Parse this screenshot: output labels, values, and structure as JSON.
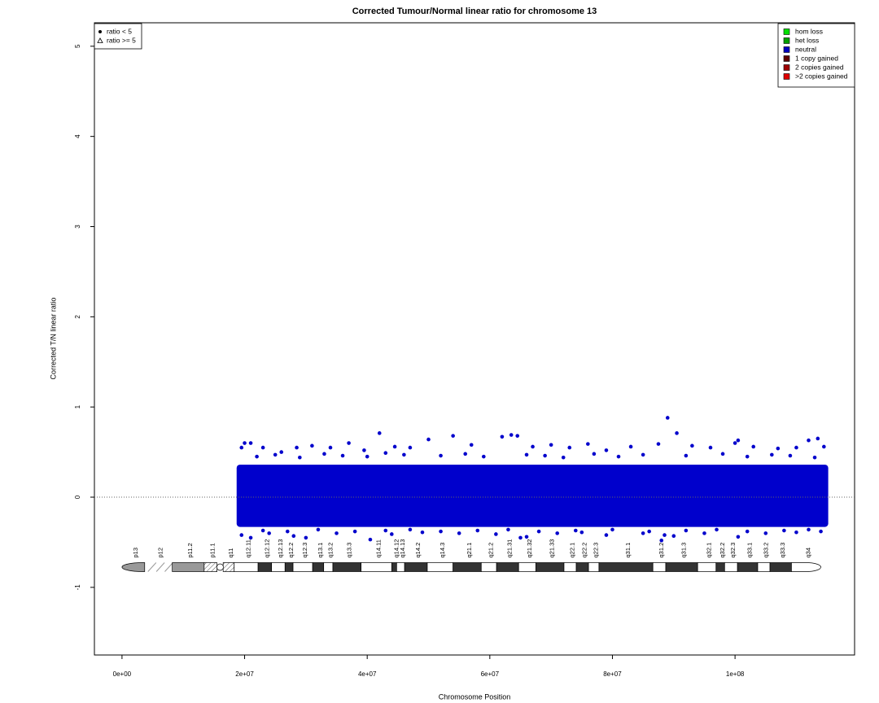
{
  "chart_data": {
    "type": "scatter",
    "title": "Corrected Tumour/Normal linear ratio for chromosome  13",
    "x_label": "Chromosome Position",
    "y_label": "Corrected T/N linear ratio",
    "xlim": [
      -4500000,
      119500000
    ],
    "ylim": [
      -1.75,
      5.26
    ],
    "xticks": [
      {
        "value": 0,
        "label": "0e+00"
      },
      {
        "value": 20000000,
        "label": "2e+07"
      },
      {
        "value": 40000000,
        "label": "4e+07"
      },
      {
        "value": 60000000,
        "label": "6e+07"
      },
      {
        "value": 80000000,
        "label": "8e+07"
      },
      {
        "value": 100000000,
        "label": "1e+08"
      }
    ],
    "yticks": [
      -1,
      0,
      1,
      2,
      3,
      4,
      5
    ],
    "hline": 0,
    "color": "#0000cc",
    "cloud": {
      "xlim": [
        18700000,
        115200000
      ],
      "ylim": [
        -0.33,
        0.36
      ]
    },
    "x": [
      20000000.0,
      21000000.0,
      19500000.0,
      23000000.0,
      26000000.0,
      28500000.0,
      31000000.0,
      34000000.0,
      37000000.0,
      39500000.0,
      42000000.0,
      44500000.0,
      47000000.0,
      50000000.0,
      54000000.0,
      57000000.0,
      62000000.0,
      63500000.0,
      64500000.0,
      67000000.0,
      70000000.0,
      73000000.0,
      76000000.0,
      79000000.0,
      83000000.0,
      87500000.0,
      89000000.0,
      90500000.0,
      93000000.0,
      96000000.0,
      100000000.0,
      100500000.0,
      103000000.0,
      107000000.0,
      110000000.0,
      112000000.0,
      113500000.0,
      114500000.0,
      19500000.0,
      21000000.0,
      24000000.0,
      28000000.0,
      30000000.0,
      35000000.0,
      40500000.0,
      44000000.0,
      49000000.0,
      55000000.0,
      61000000.0,
      65000000.0,
      66000000.0,
      71000000.0,
      75000000.0,
      79000000.0,
      85000000.0,
      88000000.0,
      88500000.0,
      90000000.0,
      95000000.0,
      100500000.0,
      105000000.0,
      110000000.0,
      114000000.0,
      22000000.0,
      25000000.0,
      29000000.0,
      33000000.0,
      36000000.0,
      40000000.0,
      43000000.0,
      46000000.0,
      52000000.0,
      56000000.0,
      59000000.0,
      66000000.0,
      69000000.0,
      72000000.0,
      77000000.0,
      81000000.0,
      85000000.0,
      92000000.0,
      98000000.0,
      102000000.0,
      106000000.0,
      109000000.0,
      113000000.0,
      23000000.0,
      27000000.0,
      32000000.0,
      38000000.0,
      43000000.0,
      47000000.0,
      52000000.0,
      58000000.0,
      63000000.0,
      68000000.0,
      74000000.0,
      80000000.0,
      86000000.0,
      92000000.0,
      97000000.0,
      102000000.0,
      108000000.0,
      112000000.0
    ],
    "values": [
      0.6,
      0.6,
      0.55,
      0.55,
      0.5,
      0.55,
      0.57,
      0.55,
      0.6,
      0.52,
      0.71,
      0.56,
      0.55,
      0.64,
      0.68,
      0.58,
      0.67,
      0.69,
      0.68,
      0.56,
      0.58,
      0.55,
      0.59,
      0.52,
      0.56,
      0.59,
      0.88,
      0.71,
      0.57,
      0.55,
      0.6,
      0.63,
      0.56,
      0.54,
      0.55,
      0.63,
      0.65,
      0.56,
      -0.42,
      -0.45,
      -0.4,
      -0.43,
      -0.45,
      -0.4,
      -0.47,
      -0.41,
      -0.39,
      -0.4,
      -0.41,
      -0.45,
      -0.44,
      -0.4,
      -0.39,
      -0.42,
      -0.4,
      -0.48,
      -0.42,
      -0.43,
      -0.4,
      -0.44,
      -0.4,
      -0.39,
      -0.38,
      0.45,
      0.47,
      0.44,
      0.48,
      0.46,
      0.45,
      0.49,
      0.47,
      0.46,
      0.48,
      0.45,
      0.47,
      0.46,
      0.44,
      0.48,
      0.45,
      0.47,
      0.46,
      0.48,
      0.45,
      0.47,
      0.46,
      0.44,
      -0.37,
      -0.38,
      -0.36,
      -0.38,
      -0.37,
      -0.36,
      -0.38,
      -0.37,
      -0.36,
      -0.38,
      -0.37,
      -0.36,
      -0.38,
      -0.37,
      -0.36,
      -0.38,
      -0.37,
      -0.36
    ],
    "shape_legend": [
      {
        "label": "ratio < 5",
        "symbol": "dot"
      },
      {
        "label": "ratio >= 5",
        "symbol": "triangle"
      }
    ],
    "color_legend": [
      {
        "label": "hom loss",
        "color": "#00e000"
      },
      {
        "label": "het loss",
        "color": "#00a000"
      },
      {
        "label": "neutral",
        "color": "#0000c0"
      },
      {
        "label": "1 copy gained",
        "color": "#600000"
      },
      {
        "label": "2 copies gained",
        "color": "#a00000"
      },
      {
        "label": ">2 copies gained",
        "color": "#e00000"
      }
    ],
    "ideogram": [
      {
        "label": "p13",
        "start": 0,
        "end": 3700000,
        "stain": "gvar"
      },
      {
        "label": "p12",
        "start": 3700000,
        "end": 8200000,
        "stain": "stalk"
      },
      {
        "label": "p11.2",
        "start": 8200000,
        "end": 13400000,
        "stain": "gvar"
      },
      {
        "label": "p11.1",
        "start": 13400000,
        "end": 15500000,
        "stain": "acen"
      },
      {
        "label": "q11",
        "start": 16500000,
        "end": 18300000,
        "stain": "acen"
      },
      {
        "label": "q12.11",
        "start": 18300000,
        "end": 22200000,
        "stain": "gneg"
      },
      {
        "label": "q12.12",
        "start": 22200000,
        "end": 24400000,
        "stain": "gpos"
      },
      {
        "label": "q12.13",
        "start": 24400000,
        "end": 26600000,
        "stain": "gneg"
      },
      {
        "label": "q12.2",
        "start": 26600000,
        "end": 27900000,
        "stain": "gpos"
      },
      {
        "label": "q12.3",
        "start": 27900000,
        "end": 31100000,
        "stain": "gneg"
      },
      {
        "label": "q13.1",
        "start": 31100000,
        "end": 32900000,
        "stain": "gpos"
      },
      {
        "label": "q13.2",
        "start": 32900000,
        "end": 34400000,
        "stain": "gneg"
      },
      {
        "label": "q13.3",
        "start": 34400000,
        "end": 39000000,
        "stain": "gpos"
      },
      {
        "label": "q14.11",
        "start": 39000000,
        "end": 44000000,
        "stain": "gneg"
      },
      {
        "label": "q14.12",
        "start": 44000000,
        "end": 44800000,
        "stain": "gpos"
      },
      {
        "label": "q14.13",
        "start": 44800000,
        "end": 46100000,
        "stain": "gneg"
      },
      {
        "label": "q14.2",
        "start": 46100000,
        "end": 49800000,
        "stain": "gpos"
      },
      {
        "label": "q14.3",
        "start": 49800000,
        "end": 54000000,
        "stain": "gneg"
      },
      {
        "label": "q21.1",
        "start": 54000000,
        "end": 58600000,
        "stain": "gpos"
      },
      {
        "label": "q21.2",
        "start": 58600000,
        "end": 61100000,
        "stain": "gneg"
      },
      {
        "label": "q21.31",
        "start": 61100000,
        "end": 64700000,
        "stain": "gpos"
      },
      {
        "label": "q21.32",
        "start": 64700000,
        "end": 67500000,
        "stain": "gneg"
      },
      {
        "label": "q21.33",
        "start": 67500000,
        "end": 72100000,
        "stain": "gpos"
      },
      {
        "label": "q22.1",
        "start": 72100000,
        "end": 74100000,
        "stain": "gneg"
      },
      {
        "label": "q22.2",
        "start": 74100000,
        "end": 76100000,
        "stain": "gpos"
      },
      {
        "label": "q22.3",
        "start": 76100000,
        "end": 77800000,
        "stain": "gneg"
      },
      {
        "label": "q31.1",
        "start": 77800000,
        "end": 86600000,
        "stain": "gpos"
      },
      {
        "label": "q31.2",
        "start": 86600000,
        "end": 88700000,
        "stain": "gneg"
      },
      {
        "label": "q31.3",
        "start": 88700000,
        "end": 93900000,
        "stain": "gpos"
      },
      {
        "label": "q32.1",
        "start": 93900000,
        "end": 96900000,
        "stain": "gneg"
      },
      {
        "label": "q32.2",
        "start": 96900000,
        "end": 98300000,
        "stain": "gpos"
      },
      {
        "label": "q32.3",
        "start": 98300000,
        "end": 100400000,
        "stain": "gneg"
      },
      {
        "label": "q33.1",
        "start": 100400000,
        "end": 103700000,
        "stain": "gpos"
      },
      {
        "label": "q33.2",
        "start": 103700000,
        "end": 105700000,
        "stain": "gneg"
      },
      {
        "label": "q33.3",
        "start": 105700000,
        "end": 109200000,
        "stain": "gpos"
      },
      {
        "label": "q34",
        "start": 109200000,
        "end": 114000000,
        "stain": "gneg"
      }
    ]
  }
}
